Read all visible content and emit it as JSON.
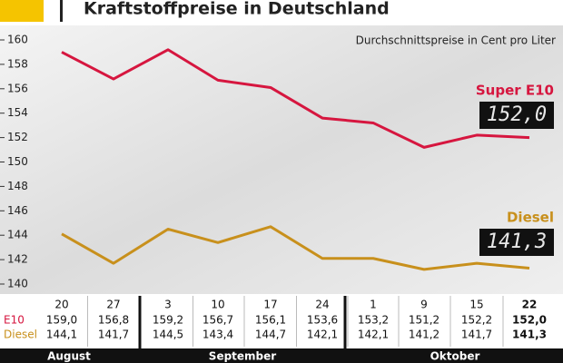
{
  "chart_data": {
    "type": "line",
    "title": "Kraftstoffpreise in Deutschland",
    "subtitle": "Durchschnittspreise in Cent pro Liter",
    "categories": [
      "20",
      "27",
      "3",
      "10",
      "17",
      "24",
      "1",
      "9",
      "15",
      "22"
    ],
    "months": [
      "August",
      "September",
      "Oktober"
    ],
    "table_row_labels": [
      "E10",
      "Diesel"
    ],
    "series": [
      {
        "name": "Super E10",
        "color": "#d6163f",
        "values": [
          159.0,
          156.8,
          159.2,
          156.7,
          156.1,
          153.6,
          153.2,
          151.2,
          152.2,
          152.0
        ],
        "value_labels": [
          "159,0",
          "156,8",
          "159,2",
          "156,7",
          "156,1",
          "153,6",
          "153,2",
          "151,2",
          "152,2",
          "152,0"
        ]
      },
      {
        "name": "Diesel",
        "color": "#c8901c",
        "values": [
          144.1,
          141.7,
          144.5,
          143.4,
          144.7,
          142.1,
          142.1,
          141.2,
          141.7,
          141.3
        ],
        "value_labels": [
          "144,1",
          "141,7",
          "144,5",
          "143,4",
          "144,7",
          "142,1",
          "142,1",
          "141,2",
          "141,7",
          "141,3"
        ]
      }
    ],
    "ylim": [
      140,
      160
    ],
    "yticks": [
      140,
      142,
      144,
      146,
      148,
      150,
      152,
      154,
      156,
      158,
      160
    ],
    "grid": false
  }
}
